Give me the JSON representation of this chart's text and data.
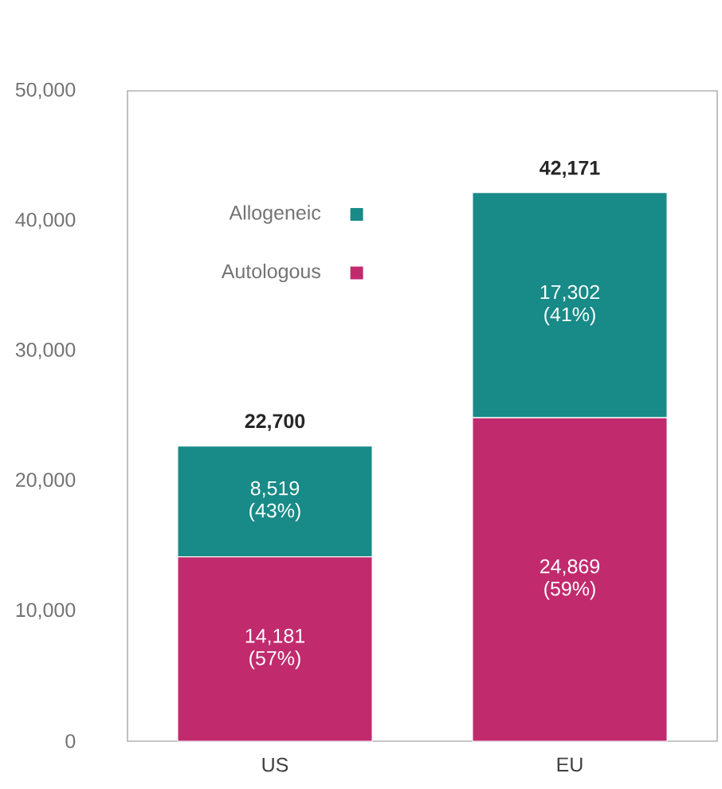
{
  "chart_data": {
    "type": "bar",
    "stacked": true,
    "categories": [
      "US",
      "EU"
    ],
    "series": [
      {
        "name": "Autologous",
        "color": "#c12b6e",
        "values": [
          14181,
          24869
        ],
        "value_labels": [
          "14,181 (57%)",
          "24,869 (59%)"
        ]
      },
      {
        "name": "Allogeneic",
        "color": "#188a87",
        "values": [
          8519,
          17302
        ],
        "value_labels": [
          "8,519 (43%)",
          "17,302 (41%)"
        ]
      }
    ],
    "totals": [
      "22,700",
      "42,171"
    ],
    "ylim": [
      0,
      50000
    ],
    "yticks": [
      {
        "value": 0,
        "label": "0"
      },
      {
        "value": 10000,
        "label": "10,000"
      },
      {
        "value": 20000,
        "label": "20,000"
      },
      {
        "value": 30000,
        "label": "30,000"
      },
      {
        "value": 40000,
        "label": "40,000"
      },
      {
        "value": 50000,
        "label": "50,000"
      }
    ],
    "grid": false,
    "legend": "top left"
  }
}
